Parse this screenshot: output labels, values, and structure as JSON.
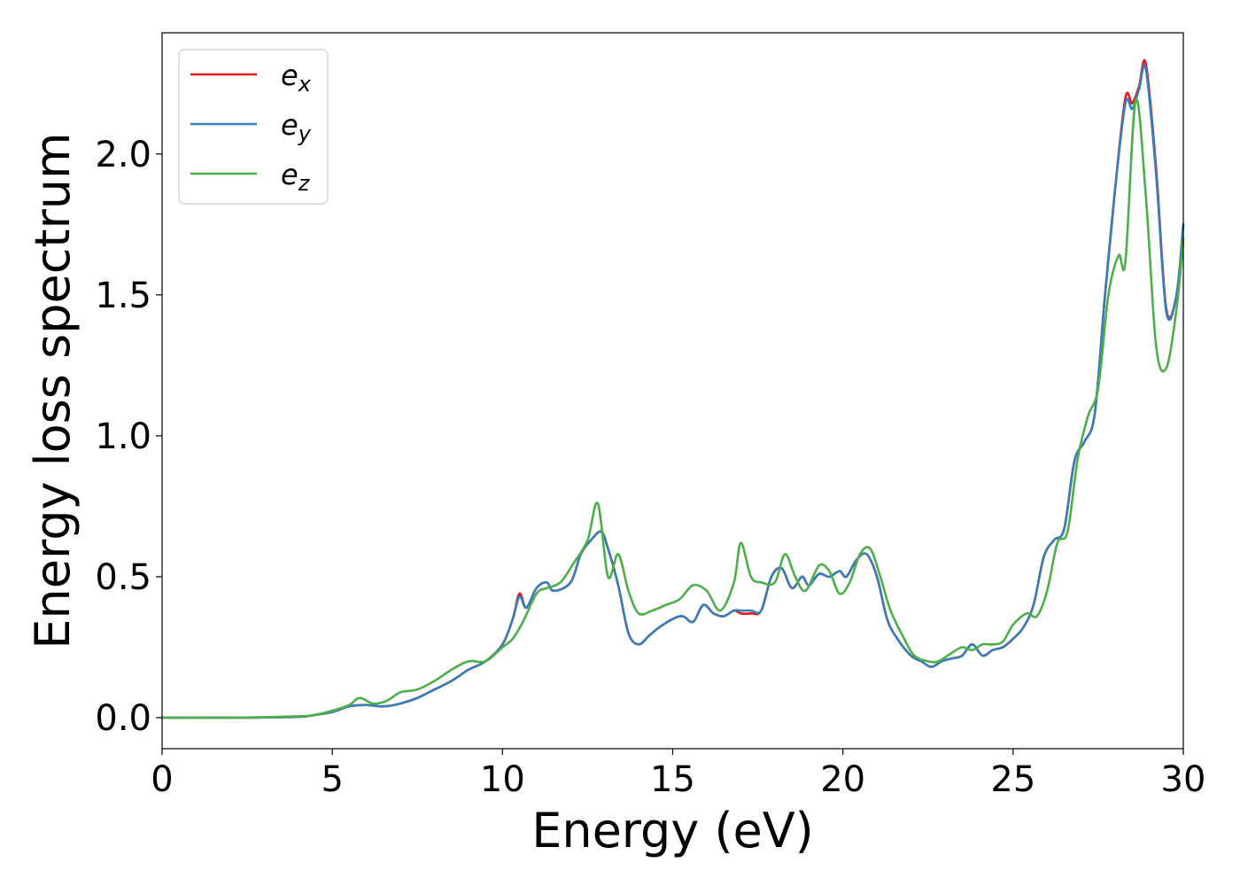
{
  "chart_data": {
    "type": "line",
    "title": "",
    "xlabel": "Energy (eV)",
    "ylabel": "Energy loss spectrum",
    "xlim": [
      0,
      30
    ],
    "ylim": [
      -0.11,
      2.43
    ],
    "xticks": [
      0,
      5,
      10,
      15,
      20,
      25,
      30
    ],
    "xtick_labels": [
      "0",
      "5",
      "10",
      "15",
      "20",
      "25",
      "30"
    ],
    "yticks": [
      0.0,
      0.5,
      1.0,
      1.5,
      2.0
    ],
    "ytick_labels": [
      "0.0",
      "0.5",
      "1.0",
      "1.5",
      "2.0"
    ],
    "grid": false,
    "legend_position": "top-left",
    "series": [
      {
        "name": "e_x",
        "label_base": "e",
        "label_sub": "x",
        "color": "#e41a1c",
        "x": [
          0,
          2,
          4,
          4.5,
          5,
          5.5,
          6,
          6.5,
          7,
          7.5,
          8,
          8.5,
          9,
          9.5,
          10,
          10.3,
          10.5,
          10.7,
          11,
          11.3,
          11.5,
          12,
          12.3,
          12.6,
          12.9,
          13.1,
          13.4,
          13.7,
          14,
          14.3,
          14.6,
          15,
          15.3,
          15.6,
          15.9,
          16.2,
          16.5,
          16.8,
          17,
          17.3,
          17.6,
          17.9,
          18.2,
          18.5,
          18.8,
          19,
          19.3,
          19.6,
          19.9,
          20.1,
          20.4,
          20.7,
          21,
          21.3,
          21.6,
          22,
          22.3,
          22.6,
          22.9,
          23.2,
          23.5,
          23.8,
          24.1,
          24.4,
          24.7,
          25,
          25.3,
          25.6,
          25.9,
          26.2,
          26.5,
          26.8,
          27.1,
          27.4,
          27.7,
          28,
          28.3,
          28.5,
          28.7,
          28.9,
          29.2,
          29.5,
          29.8,
          30
        ],
        "y": [
          0,
          0,
          0.003,
          0.01,
          0.02,
          0.04,
          0.045,
          0.04,
          0.05,
          0.07,
          0.1,
          0.13,
          0.17,
          0.2,
          0.26,
          0.35,
          0.44,
          0.39,
          0.46,
          0.48,
          0.45,
          0.48,
          0.58,
          0.63,
          0.66,
          0.6,
          0.47,
          0.3,
          0.26,
          0.29,
          0.32,
          0.35,
          0.36,
          0.34,
          0.4,
          0.37,
          0.36,
          0.38,
          0.37,
          0.37,
          0.38,
          0.5,
          0.53,
          0.46,
          0.5,
          0.47,
          0.51,
          0.5,
          0.52,
          0.5,
          0.56,
          0.58,
          0.5,
          0.35,
          0.28,
          0.22,
          0.2,
          0.18,
          0.2,
          0.21,
          0.22,
          0.26,
          0.22,
          0.24,
          0.25,
          0.28,
          0.32,
          0.4,
          0.57,
          0.63,
          0.67,
          0.91,
          0.98,
          1.08,
          1.5,
          1.88,
          2.2,
          2.18,
          2.24,
          2.32,
          1.95,
          1.45,
          1.5,
          1.75
        ]
      },
      {
        "name": "e_y",
        "label_base": "e",
        "label_sub": "y",
        "color": "#377eb8",
        "x": [
          0,
          2,
          4,
          4.5,
          5,
          5.5,
          6,
          6.5,
          7,
          7.5,
          8,
          8.5,
          9,
          9.5,
          10,
          10.3,
          10.5,
          10.7,
          11,
          11.3,
          11.5,
          12,
          12.3,
          12.6,
          12.9,
          13.1,
          13.4,
          13.7,
          14,
          14.3,
          14.6,
          15,
          15.3,
          15.6,
          15.9,
          16.2,
          16.5,
          16.8,
          17,
          17.3,
          17.6,
          17.9,
          18.2,
          18.5,
          18.8,
          19,
          19.3,
          19.6,
          19.9,
          20.1,
          20.4,
          20.7,
          21,
          21.3,
          21.6,
          22,
          22.3,
          22.6,
          22.9,
          23.2,
          23.5,
          23.8,
          24.1,
          24.4,
          24.7,
          25,
          25.3,
          25.6,
          25.9,
          26.2,
          26.5,
          26.8,
          27.1,
          27.4,
          27.7,
          28,
          28.3,
          28.5,
          28.7,
          28.9,
          29.2,
          29.5,
          29.8,
          30
        ],
        "y": [
          0,
          0,
          0.003,
          0.01,
          0.02,
          0.04,
          0.045,
          0.04,
          0.05,
          0.07,
          0.1,
          0.13,
          0.17,
          0.2,
          0.26,
          0.35,
          0.43,
          0.39,
          0.46,
          0.48,
          0.45,
          0.48,
          0.58,
          0.63,
          0.66,
          0.6,
          0.47,
          0.3,
          0.26,
          0.29,
          0.32,
          0.35,
          0.36,
          0.34,
          0.4,
          0.37,
          0.36,
          0.38,
          0.38,
          0.38,
          0.38,
          0.5,
          0.53,
          0.46,
          0.5,
          0.47,
          0.51,
          0.5,
          0.52,
          0.5,
          0.56,
          0.58,
          0.5,
          0.35,
          0.28,
          0.22,
          0.2,
          0.18,
          0.2,
          0.21,
          0.22,
          0.26,
          0.22,
          0.24,
          0.25,
          0.28,
          0.32,
          0.4,
          0.57,
          0.63,
          0.67,
          0.91,
          0.98,
          1.08,
          1.5,
          1.88,
          2.18,
          2.16,
          2.23,
          2.3,
          1.93,
          1.44,
          1.5,
          1.75
        ]
      },
      {
        "name": "e_z",
        "label_base": "e",
        "label_sub": "z",
        "color": "#4daf4a",
        "x": [
          0,
          2,
          4,
          4.5,
          5,
          5.5,
          5.8,
          6.2,
          6.6,
          7,
          7.5,
          8,
          8.5,
          9,
          9.5,
          10,
          10.3,
          10.6,
          11,
          11.3,
          11.7,
          12.1,
          12.5,
          12.8,
          13.1,
          13.4,
          13.7,
          14,
          14.4,
          14.8,
          15.2,
          15.6,
          16,
          16.4,
          16.8,
          17,
          17.3,
          17.6,
          18,
          18.3,
          18.6,
          18.9,
          19.3,
          19.6,
          19.9,
          20.2,
          20.5,
          20.8,
          21.1,
          21.4,
          21.8,
          22.1,
          22.5,
          22.8,
          23.2,
          23.5,
          23.8,
          24.1,
          24.4,
          24.7,
          25,
          25.4,
          25.7,
          26,
          26.3,
          26.6,
          26.9,
          27.2,
          27.5,
          27.8,
          28.1,
          28.3,
          28.6,
          28.9,
          29.2,
          29.5,
          29.8,
          30
        ],
        "y": [
          0,
          0,
          0.005,
          0.01,
          0.025,
          0.045,
          0.07,
          0.05,
          0.06,
          0.09,
          0.1,
          0.13,
          0.17,
          0.2,
          0.2,
          0.25,
          0.28,
          0.34,
          0.44,
          0.46,
          0.48,
          0.55,
          0.63,
          0.76,
          0.5,
          0.58,
          0.45,
          0.37,
          0.38,
          0.4,
          0.42,
          0.47,
          0.45,
          0.38,
          0.48,
          0.62,
          0.5,
          0.48,
          0.48,
          0.58,
          0.5,
          0.45,
          0.54,
          0.52,
          0.44,
          0.48,
          0.58,
          0.6,
          0.5,
          0.38,
          0.28,
          0.22,
          0.2,
          0.2,
          0.23,
          0.25,
          0.24,
          0.26,
          0.26,
          0.27,
          0.33,
          0.37,
          0.36,
          0.45,
          0.62,
          0.66,
          0.92,
          1.07,
          1.17,
          1.5,
          1.64,
          1.62,
          2.19,
          1.85,
          1.32,
          1.24,
          1.45,
          1.7
        ]
      }
    ]
  }
}
